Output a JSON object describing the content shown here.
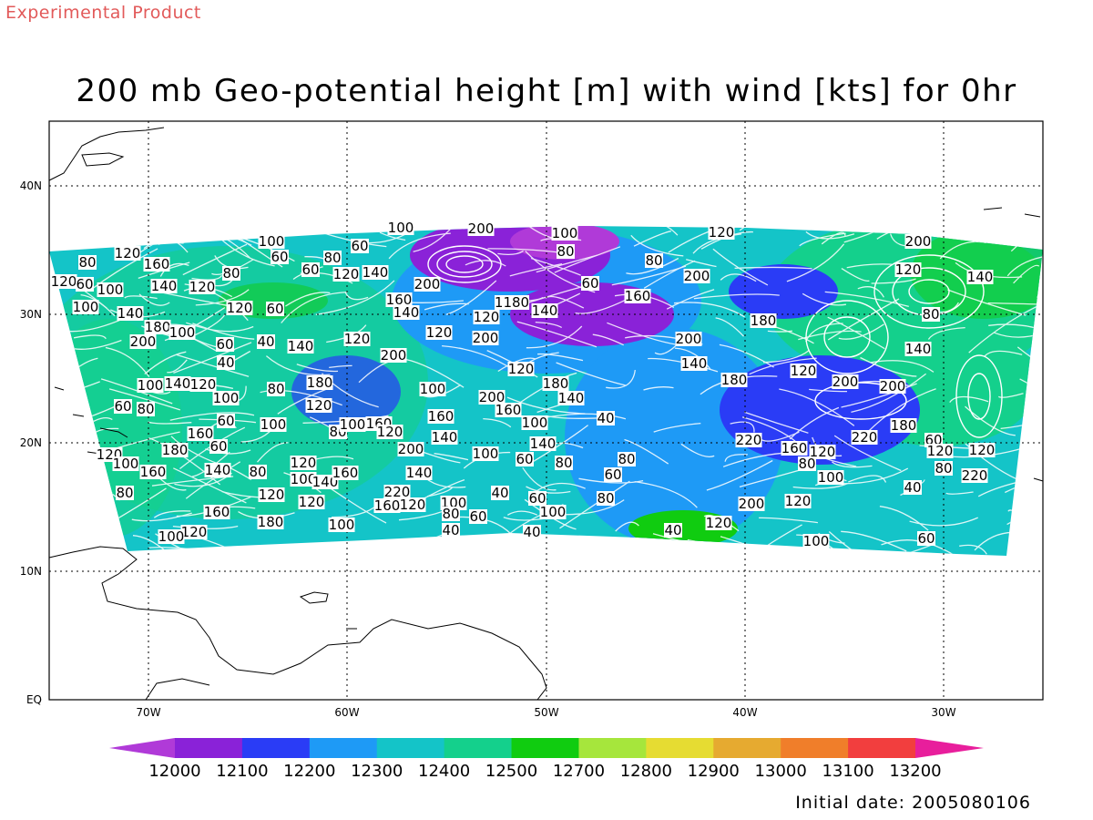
{
  "header": {
    "product_label": "Experimental Product",
    "title": "200 mb Geo-potential height [m] with wind [kts] for 0hr"
  },
  "footer": {
    "initial_date": "Initial date: 2005080106"
  },
  "map": {
    "lon_range": [
      -75,
      -25
    ],
    "lat_range": [
      0,
      45
    ],
    "lon_ticks": [
      "70W",
      "60W",
      "50W",
      "40W",
      "30W"
    ],
    "lat_ticks": [
      "EQ",
      "10N",
      "20N",
      "30N",
      "40N"
    ],
    "gridlines": true
  },
  "colorbar": {
    "labels": [
      "12000",
      "12100",
      "12200",
      "12300",
      "12400",
      "12500",
      "12700",
      "12800",
      "12900",
      "13000",
      "13100",
      "13200"
    ],
    "colors": [
      "#b03ad8",
      "#8a22d8",
      "#2a3cf6",
      "#1e9af6",
      "#14c4c8",
      "#14d08c",
      "#10cc10",
      "#a6e63c",
      "#e6dc32",
      "#e6aa30",
      "#f07e2a",
      "#f23e3e",
      "#e81e9c"
    ]
  },
  "contour_labels": [
    "200",
    "100",
    "120",
    "80",
    "60",
    "140",
    "160",
    "180",
    "40",
    "220",
    "1180"
  ]
}
